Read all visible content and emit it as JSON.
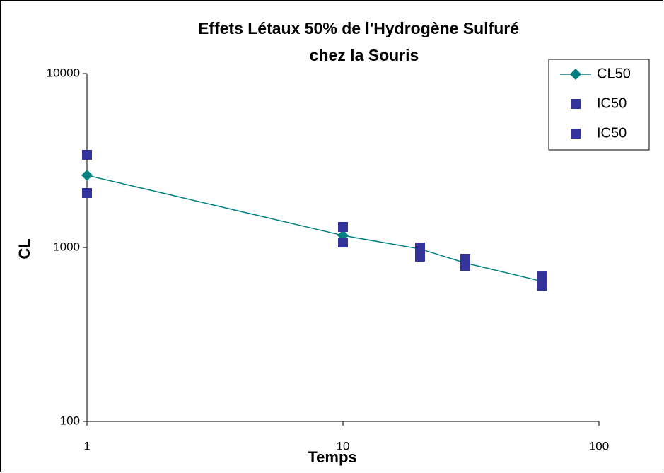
{
  "chart_data": {
    "type": "scatter",
    "title": [
      "Effets Létaux 50% de l'Hydrogène Sulfuré",
      "chez la Souris"
    ],
    "x_label": "Temps",
    "y_label": "CL",
    "x_log": true,
    "y_log": true,
    "grid": false,
    "legend": "upper right",
    "xlim": [
      1,
      100
    ],
    "xticks": [
      1,
      10,
      100
    ],
    "ylim": [
      100,
      10000
    ],
    "yticks": [
      100,
      1000,
      10000
    ],
    "series": [
      {
        "name": "CL50",
        "color": "#008080",
        "marker": "diamond",
        "line": true,
        "x": [
          1,
          10,
          20,
          30,
          60
        ],
        "values": [
          2600,
          1172,
          981,
          815,
          638
        ]
      },
      {
        "name": "IC50",
        "color": "#333399",
        "marker": "square",
        "line": false,
        "x": [
          1,
          10,
          20,
          30,
          60
        ],
        "values": [
          3410,
          1312,
          1000,
          861,
          681
        ]
      },
      {
        "name": "IC50",
        "color": "#333399",
        "marker": "square",
        "line": false,
        "x": [
          1,
          10,
          20,
          30,
          60
        ],
        "values": [
          2056,
          1067,
          885,
          783,
          602
        ]
      }
    ]
  }
}
